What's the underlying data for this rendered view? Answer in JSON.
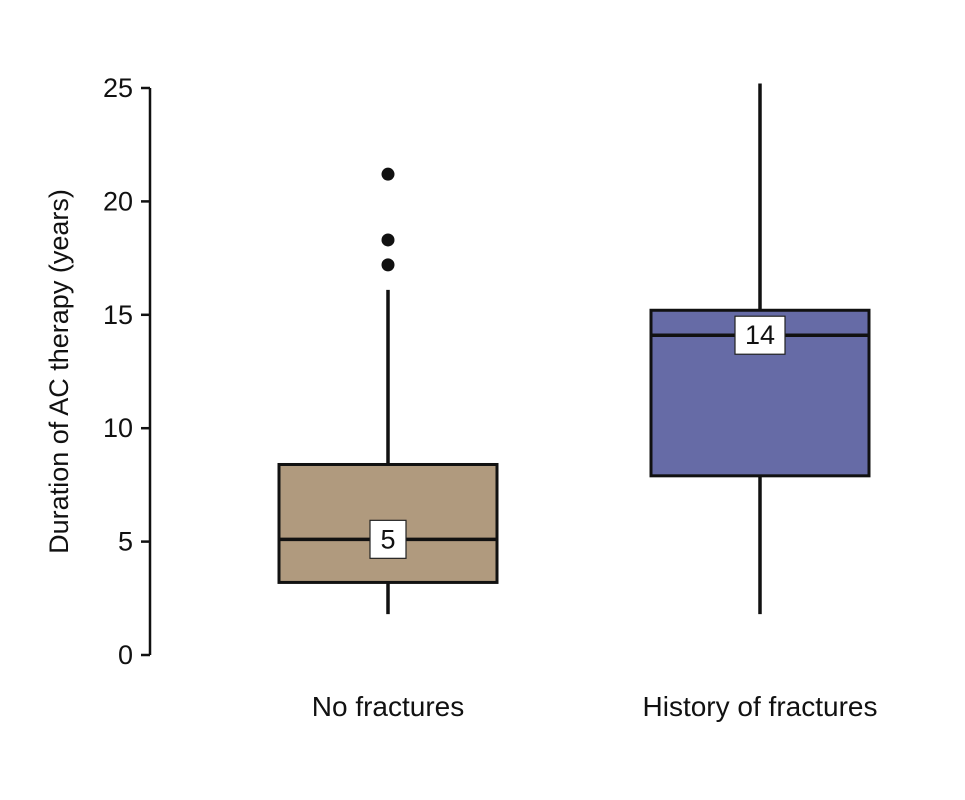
{
  "figure": {
    "background": "#ffffff",
    "axis_color": "#111111"
  },
  "chart_data": {
    "type": "boxplot",
    "title": "",
    "xlabel": "",
    "ylabel": "Duration of AC therapy (years)",
    "ylim": [
      0,
      25
    ],
    "yticks": [
      0,
      5,
      10,
      15,
      20,
      25
    ],
    "grid": false,
    "legend": "none",
    "groups": [
      {
        "label": "No fractures",
        "color": "#b09a7e",
        "whisker_low": 1.8,
        "q1": 3.2,
        "median": 5.1,
        "median_label": "5",
        "q3": 8.4,
        "whisker_high": 16.1,
        "outliers": [
          17.2,
          18.3,
          21.2
        ]
      },
      {
        "label": "History of fractures",
        "color": "#666ba6",
        "whisker_low": 1.8,
        "q1": 7.9,
        "median": 14.1,
        "median_label": "14",
        "q3": 15.2,
        "whisker_high": 25.2,
        "outliers": []
      }
    ]
  }
}
